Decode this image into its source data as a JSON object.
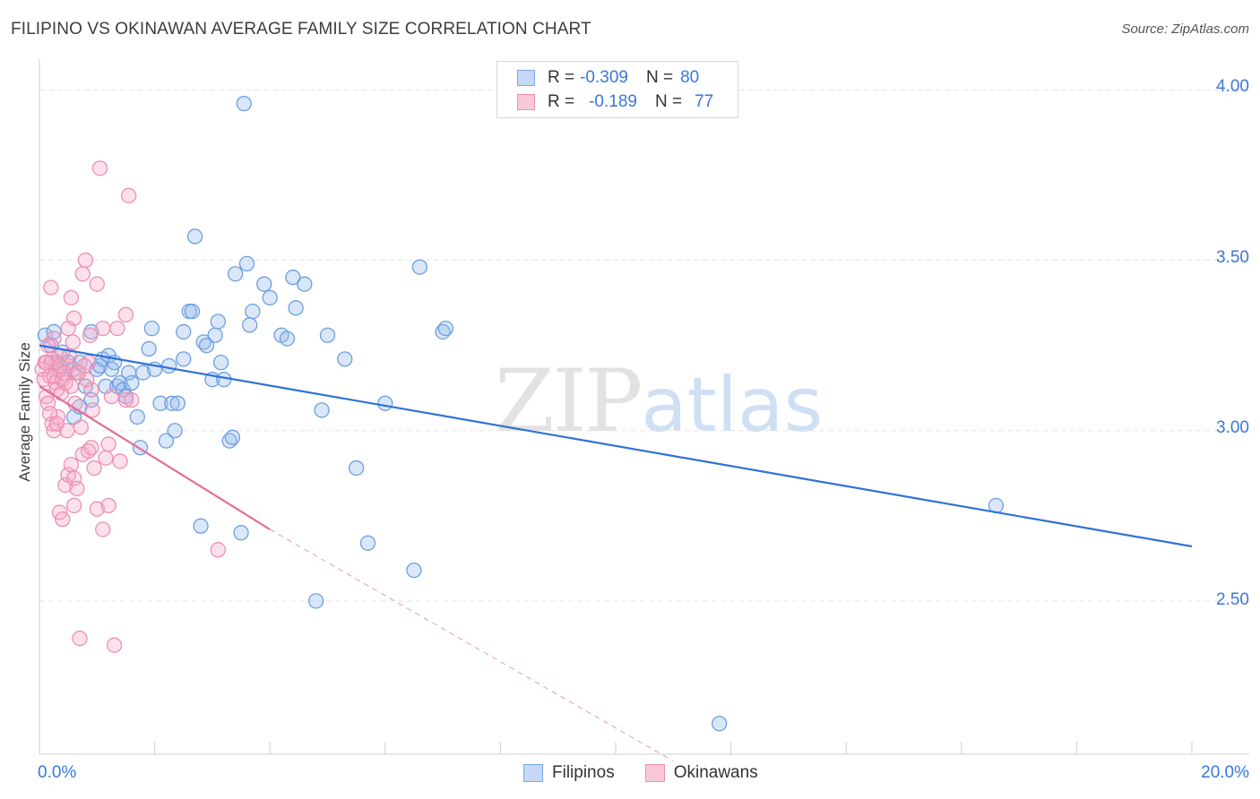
{
  "header": {
    "title": "FILIPINO VS OKINAWAN AVERAGE FAMILY SIZE CORRELATION CHART",
    "source": "Source: ZipAtlas.com"
  },
  "watermark": {
    "zip": "ZIP",
    "atlas": "atlas"
  },
  "legend": {
    "rows": [
      {
        "r_label": "R =",
        "r_value": "-0.309",
        "n_label": "N =",
        "n_value": "80",
        "color": "#7aa7e6",
        "fill": "#c5d8f5"
      },
      {
        "r_label": "R =",
        "r_value": "-0.189",
        "n_label": "N =",
        "n_value": "77",
        "color": "#ef8fb1",
        "fill": "#f8c8d8"
      }
    ]
  },
  "bottom_legend": {
    "items": [
      "Filipinos",
      "Okinawans"
    ]
  },
  "axes": {
    "ylabel": "Average Family Size",
    "x_min_label": "0.0%",
    "x_max_label": "20.0%",
    "y_ticks": [
      "4.00",
      "3.50",
      "3.00",
      "2.50"
    ]
  },
  "colors": {
    "blue_stroke": "#6d9ee3",
    "blue_fill": "rgba(150,185,235,0.35)",
    "blue_line": "#2f72d6",
    "pink_stroke": "#ec8fb0",
    "pink_fill": "rgba(245,170,200,0.35)",
    "pink_line": "#e0709a",
    "grid": "#e6e6e6"
  },
  "chart_data": {
    "type": "scatter",
    "title": "FILIPINO VS OKINAWAN AVERAGE FAMILY SIZE CORRELATION CHART",
    "xlabel": "",
    "ylabel": "Average Family Size",
    "xlim": [
      0,
      20
    ],
    "ylim": [
      2.05,
      4.08
    ],
    "y_gridlines": [
      2.5,
      3.0,
      3.5,
      4.0
    ],
    "series": [
      {
        "name": "Filipinos",
        "R": -0.309,
        "N": 80,
        "trend": {
          "x": [
            0,
            20
          ],
          "y": [
            3.25,
            2.66
          ],
          "style": "solid"
        },
        "points": [
          [
            0.1,
            3.28
          ],
          [
            0.2,
            3.25
          ],
          [
            0.3,
            3.2
          ],
          [
            0.35,
            3.18
          ],
          [
            0.4,
            3.23
          ],
          [
            0.5,
            3.2
          ],
          [
            0.6,
            3.18
          ],
          [
            0.7,
            3.2
          ],
          [
            0.8,
            3.13
          ],
          [
            0.6,
            3.04
          ],
          [
            0.7,
            3.07
          ],
          [
            0.9,
            3.09
          ],
          [
            0.9,
            3.29
          ],
          [
            1.0,
            3.18
          ],
          [
            1.05,
            3.19
          ],
          [
            1.1,
            3.21
          ],
          [
            1.15,
            3.13
          ],
          [
            1.2,
            3.22
          ],
          [
            1.25,
            3.18
          ],
          [
            1.3,
            3.2
          ],
          [
            1.35,
            3.13
          ],
          [
            1.4,
            3.14
          ],
          [
            1.45,
            3.12
          ],
          [
            1.5,
            3.1
          ],
          [
            1.55,
            3.17
          ],
          [
            1.6,
            3.14
          ],
          [
            1.7,
            3.04
          ],
          [
            1.75,
            2.95
          ],
          [
            1.8,
            3.17
          ],
          [
            1.9,
            3.24
          ],
          [
            1.95,
            3.3
          ],
          [
            2.0,
            3.18
          ],
          [
            2.1,
            3.08
          ],
          [
            2.2,
            2.97
          ],
          [
            2.25,
            3.19
          ],
          [
            2.3,
            3.08
          ],
          [
            2.35,
            3.0
          ],
          [
            2.4,
            3.08
          ],
          [
            2.5,
            3.21
          ],
          [
            2.5,
            3.29
          ],
          [
            2.6,
            3.35
          ],
          [
            2.65,
            3.35
          ],
          [
            2.7,
            3.57
          ],
          [
            2.8,
            2.72
          ],
          [
            2.85,
            3.26
          ],
          [
            2.9,
            3.25
          ],
          [
            3.0,
            3.15
          ],
          [
            3.05,
            3.28
          ],
          [
            3.1,
            3.32
          ],
          [
            3.15,
            3.2
          ],
          [
            3.2,
            3.15
          ],
          [
            3.3,
            2.97
          ],
          [
            3.35,
            2.98
          ],
          [
            3.4,
            3.46
          ],
          [
            3.5,
            2.7
          ],
          [
            3.55,
            3.96
          ],
          [
            3.6,
            3.49
          ],
          [
            3.65,
            3.31
          ],
          [
            3.7,
            3.35
          ],
          [
            3.9,
            3.43
          ],
          [
            4.0,
            3.39
          ],
          [
            4.2,
            3.28
          ],
          [
            4.3,
            3.27
          ],
          [
            4.4,
            3.45
          ],
          [
            4.45,
            3.36
          ],
          [
            4.6,
            3.43
          ],
          [
            4.8,
            2.5
          ],
          [
            4.9,
            3.06
          ],
          [
            5.0,
            3.28
          ],
          [
            5.3,
            3.21
          ],
          [
            5.5,
            2.89
          ],
          [
            5.7,
            2.67
          ],
          [
            6.0,
            3.08
          ],
          [
            6.5,
            2.59
          ],
          [
            6.6,
            3.48
          ],
          [
            7.0,
            3.29
          ],
          [
            7.05,
            3.3
          ],
          [
            11.8,
            2.14
          ],
          [
            16.6,
            2.78
          ],
          [
            0.25,
            3.29
          ]
        ]
      },
      {
        "name": "Okinawans",
        "R": -0.189,
        "N": 77,
        "trend": {
          "x": [
            0,
            4.0
          ],
          "y": [
            3.13,
            2.71
          ],
          "style": "solid",
          "extension": {
            "x": [
              4.0,
              11.0
            ],
            "y": [
              2.71,
              2.03
            ],
            "style": "dashed"
          }
        },
        "points": [
          [
            0.05,
            3.18
          ],
          [
            0.08,
            3.15
          ],
          [
            0.1,
            3.2
          ],
          [
            0.12,
            3.1
          ],
          [
            0.15,
            3.08
          ],
          [
            0.18,
            3.16
          ],
          [
            0.2,
            3.2
          ],
          [
            0.22,
            3.02
          ],
          [
            0.25,
            3.0
          ],
          [
            0.28,
            3.14
          ],
          [
            0.3,
            3.18
          ],
          [
            0.32,
            3.04
          ],
          [
            0.35,
            3.22
          ],
          [
            0.2,
            3.42
          ],
          [
            0.25,
            3.27
          ],
          [
            0.3,
            3.12
          ],
          [
            0.35,
            2.76
          ],
          [
            0.4,
            3.15
          ],
          [
            0.4,
            2.74
          ],
          [
            0.45,
            2.84
          ],
          [
            0.5,
            3.19
          ],
          [
            0.5,
            2.87
          ],
          [
            0.5,
            3.3
          ],
          [
            0.55,
            3.39
          ],
          [
            0.55,
            2.9
          ],
          [
            0.6,
            3.33
          ],
          [
            0.6,
            2.86
          ],
          [
            0.6,
            2.78
          ],
          [
            0.65,
            3.17
          ],
          [
            0.65,
            2.83
          ],
          [
            0.7,
            2.39
          ],
          [
            0.75,
            2.93
          ],
          [
            0.75,
            3.46
          ],
          [
            0.8,
            3.5
          ],
          [
            0.85,
            3.2
          ],
          [
            0.85,
            2.94
          ],
          [
            0.9,
            3.12
          ],
          [
            0.9,
            2.95
          ],
          [
            0.95,
            2.89
          ],
          [
            1.0,
            3.43
          ],
          [
            1.0,
            2.77
          ],
          [
            1.05,
            3.77
          ],
          [
            1.1,
            2.71
          ],
          [
            1.1,
            3.3
          ],
          [
            1.15,
            2.92
          ],
          [
            1.2,
            2.96
          ],
          [
            1.2,
            2.78
          ],
          [
            1.25,
            3.1
          ],
          [
            1.3,
            2.37
          ],
          [
            1.35,
            3.3
          ],
          [
            1.4,
            2.91
          ],
          [
            1.5,
            3.34
          ],
          [
            1.5,
            3.09
          ],
          [
            1.55,
            3.69
          ],
          [
            1.6,
            3.09
          ],
          [
            0.15,
            3.25
          ],
          [
            0.18,
            3.05
          ],
          [
            0.22,
            3.21
          ],
          [
            0.25,
            3.16
          ],
          [
            0.3,
            3.02
          ],
          [
            0.35,
            3.19
          ],
          [
            0.38,
            3.11
          ],
          [
            0.42,
            3.17
          ],
          [
            0.45,
            3.14
          ],
          [
            0.48,
            3.0
          ],
          [
            0.52,
            3.22
          ],
          [
            0.55,
            3.13
          ],
          [
            0.58,
            3.26
          ],
          [
            0.62,
            3.08
          ],
          [
            0.68,
            3.17
          ],
          [
            0.72,
            3.01
          ],
          [
            0.78,
            3.19
          ],
          [
            0.82,
            3.15
          ],
          [
            0.88,
            3.28
          ],
          [
            0.92,
            3.06
          ],
          [
            3.1,
            2.65
          ],
          [
            0.12,
            3.2
          ]
        ]
      }
    ]
  }
}
